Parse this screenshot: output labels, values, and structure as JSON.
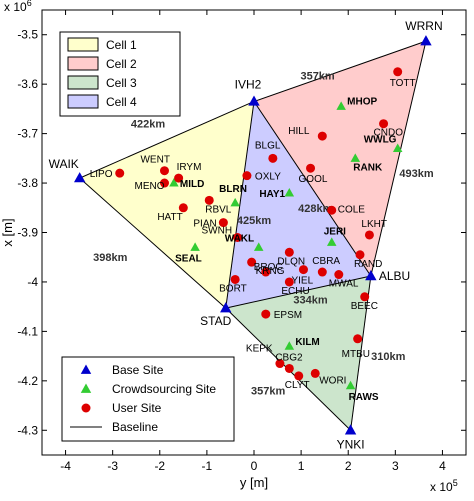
{
  "chart_data": {
    "type": "scatter",
    "title": "",
    "xlabel": "y [m]",
    "ylabel": "x [m]",
    "x_exponent": "x 10",
    "x_exponent_power": "5",
    "y_exponent": "x 10",
    "y_exponent_power": "6",
    "xlim": [
      -4.5,
      4.5
    ],
    "ylim": [
      -4.35,
      -3.45
    ],
    "x_ticks": [
      -4,
      -3,
      -2,
      -1,
      0,
      1,
      2,
      3,
      4
    ],
    "y_ticks": [
      -3.5,
      -3.6,
      -3.7,
      -3.8,
      -3.9,
      -4.0,
      -4.1,
      -4.2,
      -4.3
    ],
    "x_tick_labels": [
      "-4",
      "-3",
      "-2",
      "-1",
      "0",
      "1",
      "2",
      "3",
      "4"
    ],
    "y_tick_labels": [
      "-3.5",
      "-3.6",
      "-3.7",
      "-3.8",
      "-3.9",
      "-4",
      "-4.1",
      "-4.2",
      "-4.3"
    ],
    "y_reversed": true,
    "legend_top": {
      "placement": "top-left",
      "entries": [
        {
          "label": "Cell 1",
          "fill": "#ffffcc"
        },
        {
          "label": "Cell 2",
          "fill": "#ffcccc"
        },
        {
          "label": "Cell 3",
          "fill": "#cce5cc"
        },
        {
          "label": "Cell 4",
          "fill": "#ccccff"
        }
      ]
    },
    "legend_bottom": {
      "placement": "bottom-left",
      "entries": [
        {
          "label": "Base Site",
          "marker": "triangle",
          "color": "#0000cc"
        },
        {
          "label": "Crowdsourcing Site",
          "marker": "triangle",
          "color": "#33cc33"
        },
        {
          "label": "User Site",
          "marker": "circle",
          "color": "#dd0000"
        },
        {
          "label": "Baseline",
          "marker": "line",
          "color": "#000000"
        }
      ]
    },
    "cells": [
      {
        "name": "Cell 1",
        "fill": "#ffffcc",
        "vertices": [
          "WAIK",
          "IVH2",
          "STAD"
        ]
      },
      {
        "name": "Cell 2",
        "fill": "#ffcccc",
        "vertices": [
          "IVH2",
          "WRRN",
          "ALBU"
        ]
      },
      {
        "name": "Cell 3",
        "fill": "#cce5cc",
        "vertices": [
          "STAD",
          "ALBU",
          "YNKI"
        ]
      },
      {
        "name": "Cell 4",
        "fill": "#ccccff",
        "vertices": [
          "IVH2",
          "ALBU",
          "STAD"
        ]
      }
    ],
    "baselines": [
      [
        "WAIK",
        "IVH2"
      ],
      [
        "WAIK",
        "STAD"
      ],
      [
        "IVH2",
        "STAD"
      ],
      [
        "IVH2",
        "WRRN"
      ],
      [
        "IVH2",
        "ALBU"
      ],
      [
        "WRRN",
        "ALBU"
      ],
      [
        "STAD",
        "ALBU"
      ],
      [
        "STAD",
        "YNKI"
      ],
      [
        "ALBU",
        "YNKI"
      ]
    ],
    "base_sites": [
      {
        "name": "WAIK",
        "x": -3.7,
        "y": -3.79
      },
      {
        "name": "IVH2",
        "x": 0.0,
        "y": -3.635
      },
      {
        "name": "WRRN",
        "x": 3.65,
        "y": -3.513
      },
      {
        "name": "ALBU",
        "x": 2.48,
        "y": -3.988
      },
      {
        "name": "STAD",
        "x": -0.6,
        "y": -4.053
      },
      {
        "name": "YNKI",
        "x": 2.05,
        "y": -4.3
      }
    ],
    "crowdsourcing_sites": [
      {
        "name": "MILD",
        "x": -1.7,
        "y": -3.8
      },
      {
        "name": "BLRN",
        "x": -0.4,
        "y": -3.84
      },
      {
        "name": "SEAL",
        "x": -1.25,
        "y": -3.93
      },
      {
        "name": "HAY1",
        "x": 0.75,
        "y": -3.82
      },
      {
        "name": "WAKL",
        "x": 0.1,
        "y": -3.93
      },
      {
        "name": "JERI",
        "x": 1.65,
        "y": -3.92
      },
      {
        "name": "MHOP",
        "x": 1.85,
        "y": -3.645
      },
      {
        "name": "RANK",
        "x": 2.15,
        "y": -3.75
      },
      {
        "name": "WWLG",
        "x": 3.05,
        "y": -3.73
      },
      {
        "name": "KILM",
        "x": 0.75,
        "y": -4.13
      },
      {
        "name": "RAWS",
        "x": 2.05,
        "y": -4.21
      }
    ],
    "user_sites": [
      {
        "name": "LIPO",
        "x": -2.85,
        "y": -3.78
      },
      {
        "name": "WENT",
        "x": -1.9,
        "y": -3.775
      },
      {
        "name": "IRYM",
        "x": -1.6,
        "y": -3.79
      },
      {
        "name": "MENO",
        "x": -1.9,
        "y": -3.8
      },
      {
        "name": "HATT",
        "x": -1.5,
        "y": -3.85
      },
      {
        "name": "RBVL",
        "x": -0.95,
        "y": -3.835
      },
      {
        "name": "PIAN",
        "x": -0.65,
        "y": -3.88
      },
      {
        "name": "SWNH",
        "x": -0.35,
        "y": -3.91
      },
      {
        "name": "OXLY",
        "x": -0.15,
        "y": -3.785
      },
      {
        "name": "BLGL",
        "x": 0.4,
        "y": -3.75
      },
      {
        "name": "HILL",
        "x": 1.45,
        "y": -3.705
      },
      {
        "name": "CNDO",
        "x": 2.75,
        "y": -3.68
      },
      {
        "name": "TOTT",
        "x": 3.05,
        "y": -3.575
      },
      {
        "name": "GOOL",
        "x": 1.2,
        "y": -3.77
      },
      {
        "name": "COLE",
        "x": 1.65,
        "y": -3.855
      },
      {
        "name": "LKHT",
        "x": 2.45,
        "y": -3.905
      },
      {
        "name": "RAND",
        "x": 2.25,
        "y": -3.945
      },
      {
        "name": "DLQN",
        "x": 0.75,
        "y": -3.94
      },
      {
        "name": "KRNG",
        "x": -0.05,
        "y": -3.96
      },
      {
        "name": "BROC",
        "x": 0.25,
        "y": -3.98
      },
      {
        "name": "YIEL",
        "x": 1.05,
        "y": -3.975
      },
      {
        "name": "CBRA",
        "x": 1.45,
        "y": -3.98
      },
      {
        "name": "MWAL",
        "x": 1.8,
        "y": -3.985
      },
      {
        "name": "ECHU",
        "x": 0.75,
        "y": -4.0
      },
      {
        "name": "BORT",
        "x": -0.4,
        "y": -3.995
      },
      {
        "name": "BEEC",
        "x": 2.35,
        "y": -4.03
      },
      {
        "name": "EPSM",
        "x": 0.25,
        "y": -4.065
      },
      {
        "name": "KEPK",
        "x": 0.55,
        "y": -4.165
      },
      {
        "name": "CBG2",
        "x": 0.75,
        "y": -4.175
      },
      {
        "name": "WORI",
        "x": 1.3,
        "y": -4.185
      },
      {
        "name": "CLYT",
        "x": 0.95,
        "y": -4.19
      },
      {
        "name": "MTBU",
        "x": 2.2,
        "y": -4.115
      }
    ],
    "annotations": [
      {
        "text": "422km",
        "x": -2.25,
        "y": -3.68
      },
      {
        "text": "357km",
        "x": 1.35,
        "y": -3.582
      },
      {
        "text": "493km",
        "x": 3.45,
        "y": -3.78
      },
      {
        "text": "428km",
        "x": 1.3,
        "y": -3.85
      },
      {
        "text": "425km",
        "x": 0.0,
        "y": -3.875
      },
      {
        "text": "398km",
        "x": -3.05,
        "y": -3.95
      },
      {
        "text": "334km",
        "x": 1.2,
        "y": -4.035
      },
      {
        "text": "310km",
        "x": 2.85,
        "y": -4.15
      },
      {
        "text": "357km",
        "x": 0.3,
        "y": -4.22
      }
    ]
  }
}
